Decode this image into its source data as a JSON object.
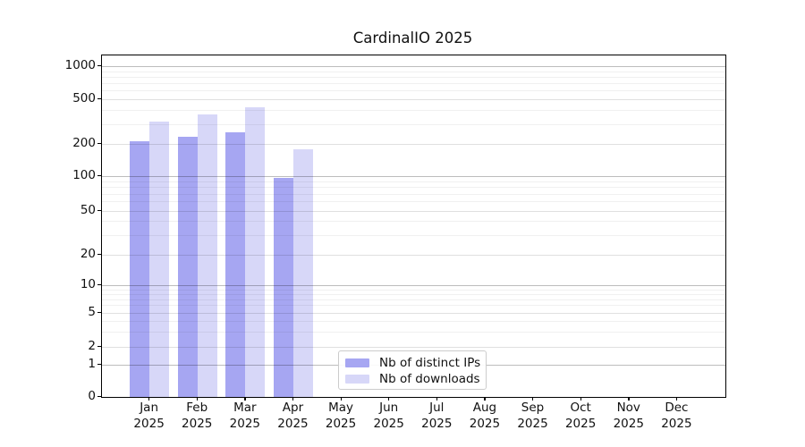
{
  "title": "CardinalIO 2025",
  "chart_data": {
    "type": "bar",
    "title": "CardinalIO 2025",
    "categories": [
      "Jan",
      "Feb",
      "Mar",
      "Apr",
      "May",
      "Jun",
      "Jul",
      "Aug",
      "Sep",
      "Oct",
      "Nov",
      "Dec"
    ],
    "year_label": "2025",
    "series": [
      {
        "name": "Nb of distinct IPs",
        "color": "#a6a6f2",
        "values": [
          215,
          232,
          255,
          97,
          0,
          0,
          0,
          0,
          0,
          0,
          0,
          0
        ]
      },
      {
        "name": "Nb of downloads",
        "color": "#d7d7f8",
        "values": [
          320,
          370,
          425,
          180,
          0,
          0,
          0,
          0,
          0,
          0,
          0,
          0
        ]
      }
    ],
    "y_axis": {
      "scale": "symlog",
      "tick_values": [
        0,
        1,
        2,
        5,
        10,
        20,
        50,
        100,
        200,
        500,
        1000
      ],
      "major_grid_values": [
        1,
        10,
        100,
        1000
      ],
      "sub_grid_values": [
        2,
        5,
        20,
        50,
        200,
        500
      ],
      "minor_grid_values": [
        3,
        4,
        6,
        7,
        8,
        9,
        30,
        40,
        60,
        70,
        80,
        90,
        300,
        400,
        600,
        700,
        800,
        900
      ]
    },
    "grid": true,
    "legend_position": "lower center",
    "colors": {
      "axis": "#000000",
      "major_grid": "rgba(0,0,0,0.26)",
      "sub_grid": "rgba(0,0,0,0.12)",
      "minor_grid": "rgba(0,0,0,0.06)"
    }
  },
  "legend": {
    "items": [
      {
        "label": "Nb of distinct IPs"
      },
      {
        "label": "Nb of downloads"
      }
    ]
  }
}
